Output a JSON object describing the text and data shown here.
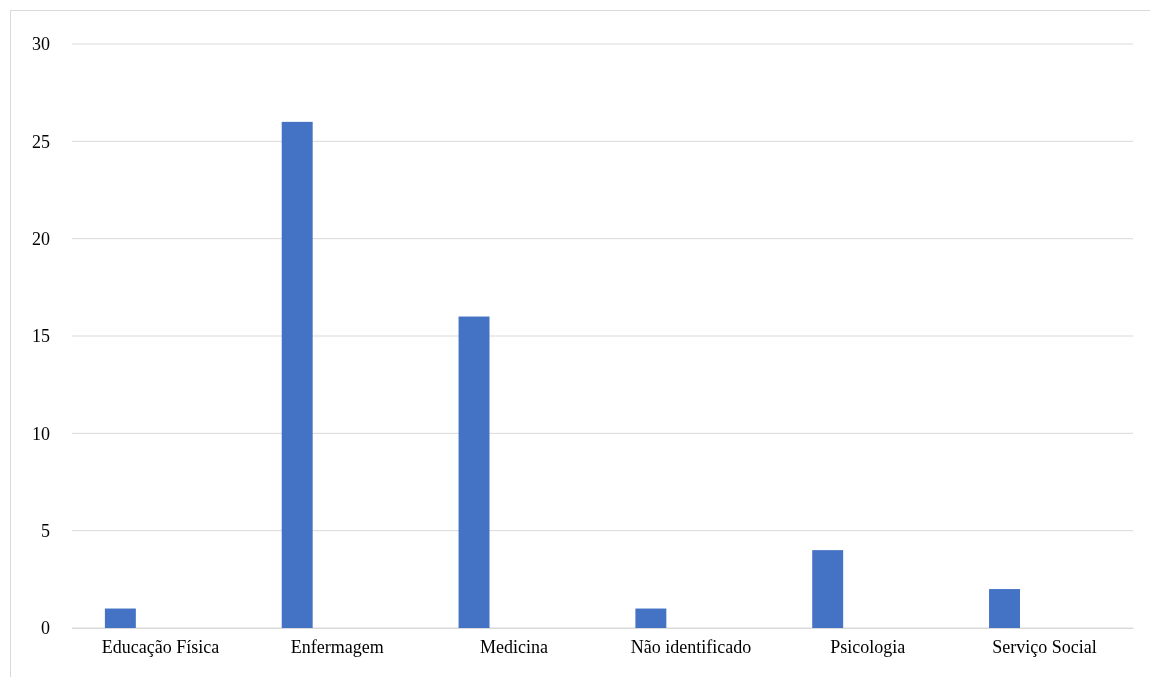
{
  "chart_data": {
    "type": "bar",
    "categories": [
      "Educação Física",
      "Enfermagem",
      "Medicina",
      "Não identificado",
      "Psicologia",
      "Serviço Social"
    ],
    "values": [
      1,
      26,
      16,
      1,
      4,
      2
    ],
    "color": "#4472c4",
    "ylim": [
      0,
      30
    ],
    "yticks": [
      0,
      5,
      10,
      15,
      20,
      25,
      30
    ],
    "grid": "y"
  }
}
